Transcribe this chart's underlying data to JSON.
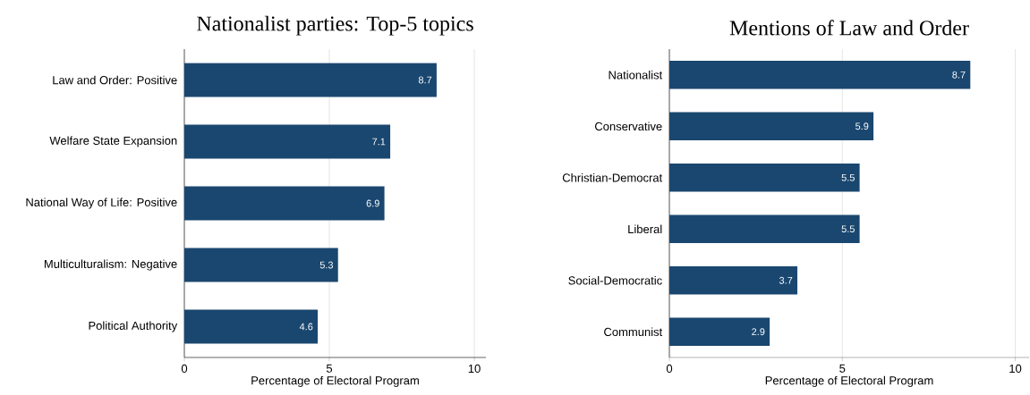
{
  "chart_data": [
    {
      "type": "bar",
      "orientation": "horizontal",
      "title": "Nationalist parties: Top-5 topics",
      "xlabel": "Percentage of Electoral Program",
      "categories": [
        "Law and Order: Positive",
        "Welfare State Expansion",
        "National Way of Life: Positive",
        "Multiculturalism: Negative",
        "Political Authority"
      ],
      "values": [
        8.7,
        7.1,
        6.9,
        5.3,
        4.6
      ],
      "color": "#1a476f",
      "xlim": [
        0,
        10.4
      ],
      "xticks": [
        0,
        5,
        10
      ],
      "grid": "x",
      "data_labels": true
    },
    {
      "type": "bar",
      "orientation": "horizontal",
      "title": "Mentions of Law and Order",
      "xlabel": "Percentage of Electoral Program",
      "categories": [
        "Nationalist",
        "Conservative",
        "Christian-Democrat",
        "Liberal",
        "Social-Democratic",
        "Communist"
      ],
      "values": [
        8.7,
        5.9,
        5.5,
        5.5,
        3.7,
        2.9
      ],
      "color": "#1a476f",
      "xlim": [
        0,
        10.4
      ],
      "xticks": [
        0,
        5,
        10
      ],
      "grid": "x",
      "data_labels": true
    }
  ]
}
